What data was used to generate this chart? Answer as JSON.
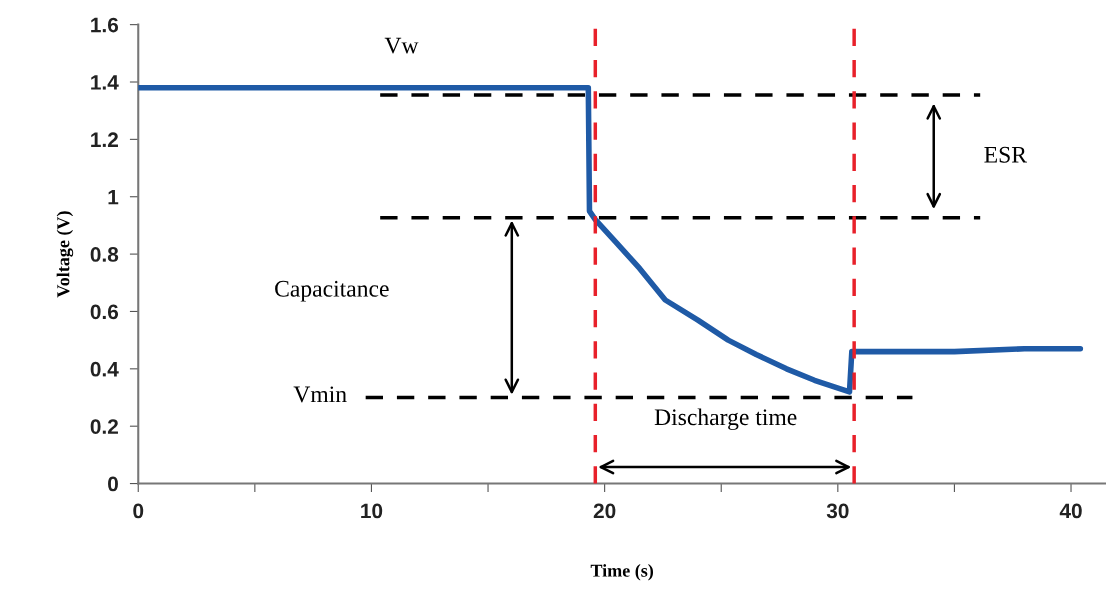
{
  "chart_data": {
    "type": "line",
    "xlabel": "Time (s)",
    "ylabel": "Voltage (V)",
    "x": [
      0,
      5,
      10,
      15,
      19.3,
      19.35,
      19.6,
      20.5,
      21.5,
      22.6,
      24,
      25.3,
      26.5,
      27.8,
      29,
      30.5,
      30.6,
      32,
      35,
      38,
      40.4
    ],
    "series": [
      {
        "color": "#1f5aa6",
        "values": [
          1.38,
          1.38,
          1.38,
          1.38,
          1.38,
          0.95,
          0.92,
          0.84,
          0.75,
          0.64,
          0.57,
          0.5,
          0.45,
          0.4,
          0.36,
          0.32,
          0.46,
          0.46,
          0.46,
          0.47,
          0.47
        ]
      }
    ],
    "xlim": [
      0,
      41.5
    ],
    "ylim": [
      0,
      1.6
    ],
    "xticks": [
      0,
      {
        "value": 5,
        "label": null
      },
      10,
      {
        "value": 15,
        "label": null
      },
      20,
      {
        "value": 25,
        "label": null
      },
      30,
      {
        "value": 35,
        "label": null
      },
      40
    ],
    "yticks": [
      0,
      0.2,
      0.4,
      0.6,
      0.8,
      1,
      1.2,
      1.4,
      1.6
    ],
    "ref_lines": [
      {
        "axis": "y",
        "value": 1.355,
        "color": "#000000",
        "line_style": "dashed"
      },
      {
        "axis": "y",
        "value": 0.927,
        "color": "#000000",
        "line_style": "dashed"
      },
      {
        "axis": "y",
        "value": 0.3,
        "color": "#000000",
        "line_style": "dashed"
      },
      {
        "axis": "x",
        "value": 19.6,
        "color": "#e8202a",
        "line_style": "dashed"
      },
      {
        "axis": "x",
        "value": 30.7,
        "color": "#e8202a",
        "line_style": "dashed"
      }
    ],
    "annotations": [
      "Vw",
      "ESR",
      "Capacitance",
      "Vmin",
      "Discharge time"
    ],
    "grid": false,
    "marker": "none",
    "line_style": "solid"
  }
}
